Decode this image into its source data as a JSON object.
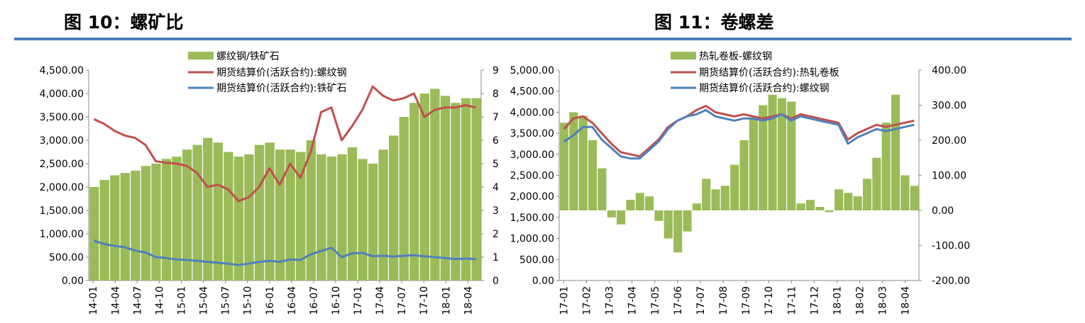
{
  "figures": [
    {
      "title": "图 10：螺矿比"
    },
    {
      "title": "图 11：卷螺差"
    }
  ],
  "chart_data": [
    {
      "type": "bar+line",
      "title": "",
      "legend": [
        "螺纹钢/铁矿石",
        "期货结算价(活跃合约):螺纹钢",
        "期货结算价(活跃合约):铁矿石"
      ],
      "legend_position": "top-center",
      "colors": {
        "bar": "#9bbb59",
        "line1": "#c0504d",
        "line2": "#4f81bd"
      },
      "x_tick_labels": [
        "14-01",
        "14-04",
        "14-07",
        "14-10",
        "15-01",
        "15-04",
        "15-07",
        "15-10",
        "16-01",
        "16-04",
        "16-07",
        "16-10",
        "17-01",
        "17-04",
        "17-07",
        "17-10",
        "18-01",
        "18-04"
      ],
      "y_left": {
        "min": 0,
        "max": 4500,
        "ticks": [
          "0.00",
          "500.00",
          "1,000.00",
          "1,500.00",
          "2,000.00",
          "2,500.00",
          "3,000.00",
          "3,500.00",
          "4,000.00",
          "4,500.00"
        ]
      },
      "y_right": {
        "min": 0,
        "max": 9,
        "ticks": [
          "0",
          "1",
          "2",
          "3",
          "4",
          "5",
          "6",
          "7",
          "8",
          "9"
        ]
      },
      "bar_ratio": [
        4.0,
        4.3,
        4.5,
        4.6,
        4.7,
        4.9,
        5.0,
        5.2,
        5.3,
        5.6,
        5.8,
        6.1,
        5.9,
        5.5,
        5.3,
        5.4,
        5.8,
        5.9,
        5.6,
        5.6,
        5.5,
        6.0,
        5.4,
        5.3,
        5.4,
        5.7,
        5.2,
        5.0,
        5.6,
        6.2,
        7.0,
        7.6,
        8.0,
        8.2,
        7.9,
        7.6,
        7.8,
        7.8
      ],
      "rebar": [
        3450,
        3350,
        3200,
        3100,
        3050,
        2900,
        2550,
        2520,
        2500,
        2450,
        2300,
        2000,
        2050,
        1950,
        1700,
        1780,
        2000,
        2400,
        2050,
        2500,
        2200,
        2750,
        3600,
        3700,
        3000,
        3300,
        3650,
        4150,
        3950,
        3850,
        3900,
        4000,
        3500,
        3650,
        3700,
        3700,
        3750,
        3700
      ],
      "iron_ore": [
        850,
        780,
        740,
        710,
        640,
        600,
        500,
        480,
        450,
        440,
        420,
        400,
        380,
        360,
        330,
        360,
        400,
        420,
        400,
        450,
        440,
        560,
        630,
        700,
        500,
        580,
        590,
        520,
        530,
        510,
        530,
        540,
        520,
        500,
        480,
        460,
        470,
        460
      ]
    },
    {
      "type": "bar+line",
      "title": "",
      "legend": [
        "热轧卷板-螺纹钢",
        "期货结算价(活跃合约):热轧卷板",
        "期货结算价(活跃合约):螺纹钢"
      ],
      "legend_position": "top-center",
      "colors": {
        "bar": "#9bbb59",
        "line1": "#c0504d",
        "line2": "#4f81bd"
      },
      "x_tick_labels": [
        "17-01",
        "17-02",
        "17-03",
        "17-04",
        "17-05",
        "17-06",
        "17-07",
        "17-08",
        "17-09",
        "17-10",
        "17-11",
        "17-12",
        "18-01",
        "18-02",
        "18-03",
        "18-04"
      ],
      "y_left": {
        "min": 0,
        "max": 5000,
        "ticks": [
          "0.00",
          "500.00",
          "1,000.00",
          "1,500.00",
          "2,000.00",
          "2,500.00",
          "3,000.00",
          "3,500.00",
          "4,000.00",
          "4,500.00",
          "5,000.00"
        ]
      },
      "y_right": {
        "min": -200,
        "max": 400,
        "ticks": [
          "-200.00",
          "-100.00",
          "0.00",
          "100.00",
          "200.00",
          "300.00",
          "400.00"
        ]
      },
      "bar_spread": [
        250,
        280,
        270,
        200,
        120,
        -20,
        -40,
        30,
        50,
        40,
        -30,
        -80,
        -120,
        -60,
        20,
        90,
        60,
        70,
        130,
        200,
        260,
        300,
        330,
        320,
        310,
        20,
        30,
        10,
        -5,
        60,
        50,
        40,
        90,
        150,
        250,
        330,
        100,
        70
      ],
      "hrc": [
        3600,
        3850,
        3900,
        3750,
        3500,
        3250,
        3050,
        3000,
        2950,
        3150,
        3350,
        3650,
        3800,
        3900,
        4050,
        4150,
        4000,
        3950,
        3900,
        3950,
        3900,
        3850,
        3900,
        3950,
        3850,
        3950,
        3900,
        3850,
        3800,
        3750,
        3350,
        3500,
        3600,
        3700,
        3650,
        3700,
        3750,
        3800
      ],
      "rebar": [
        3300,
        3450,
        3650,
        3650,
        3350,
        3150,
        2950,
        2900,
        2900,
        3100,
        3300,
        3600,
        3800,
        3900,
        3950,
        4050,
        3900,
        3850,
        3800,
        3850,
        3850,
        3800,
        3850,
        3950,
        3800,
        3900,
        3850,
        3800,
        3750,
        3700,
        3250,
        3400,
        3500,
        3600,
        3550,
        3600,
        3650,
        3700
      ]
    }
  ]
}
